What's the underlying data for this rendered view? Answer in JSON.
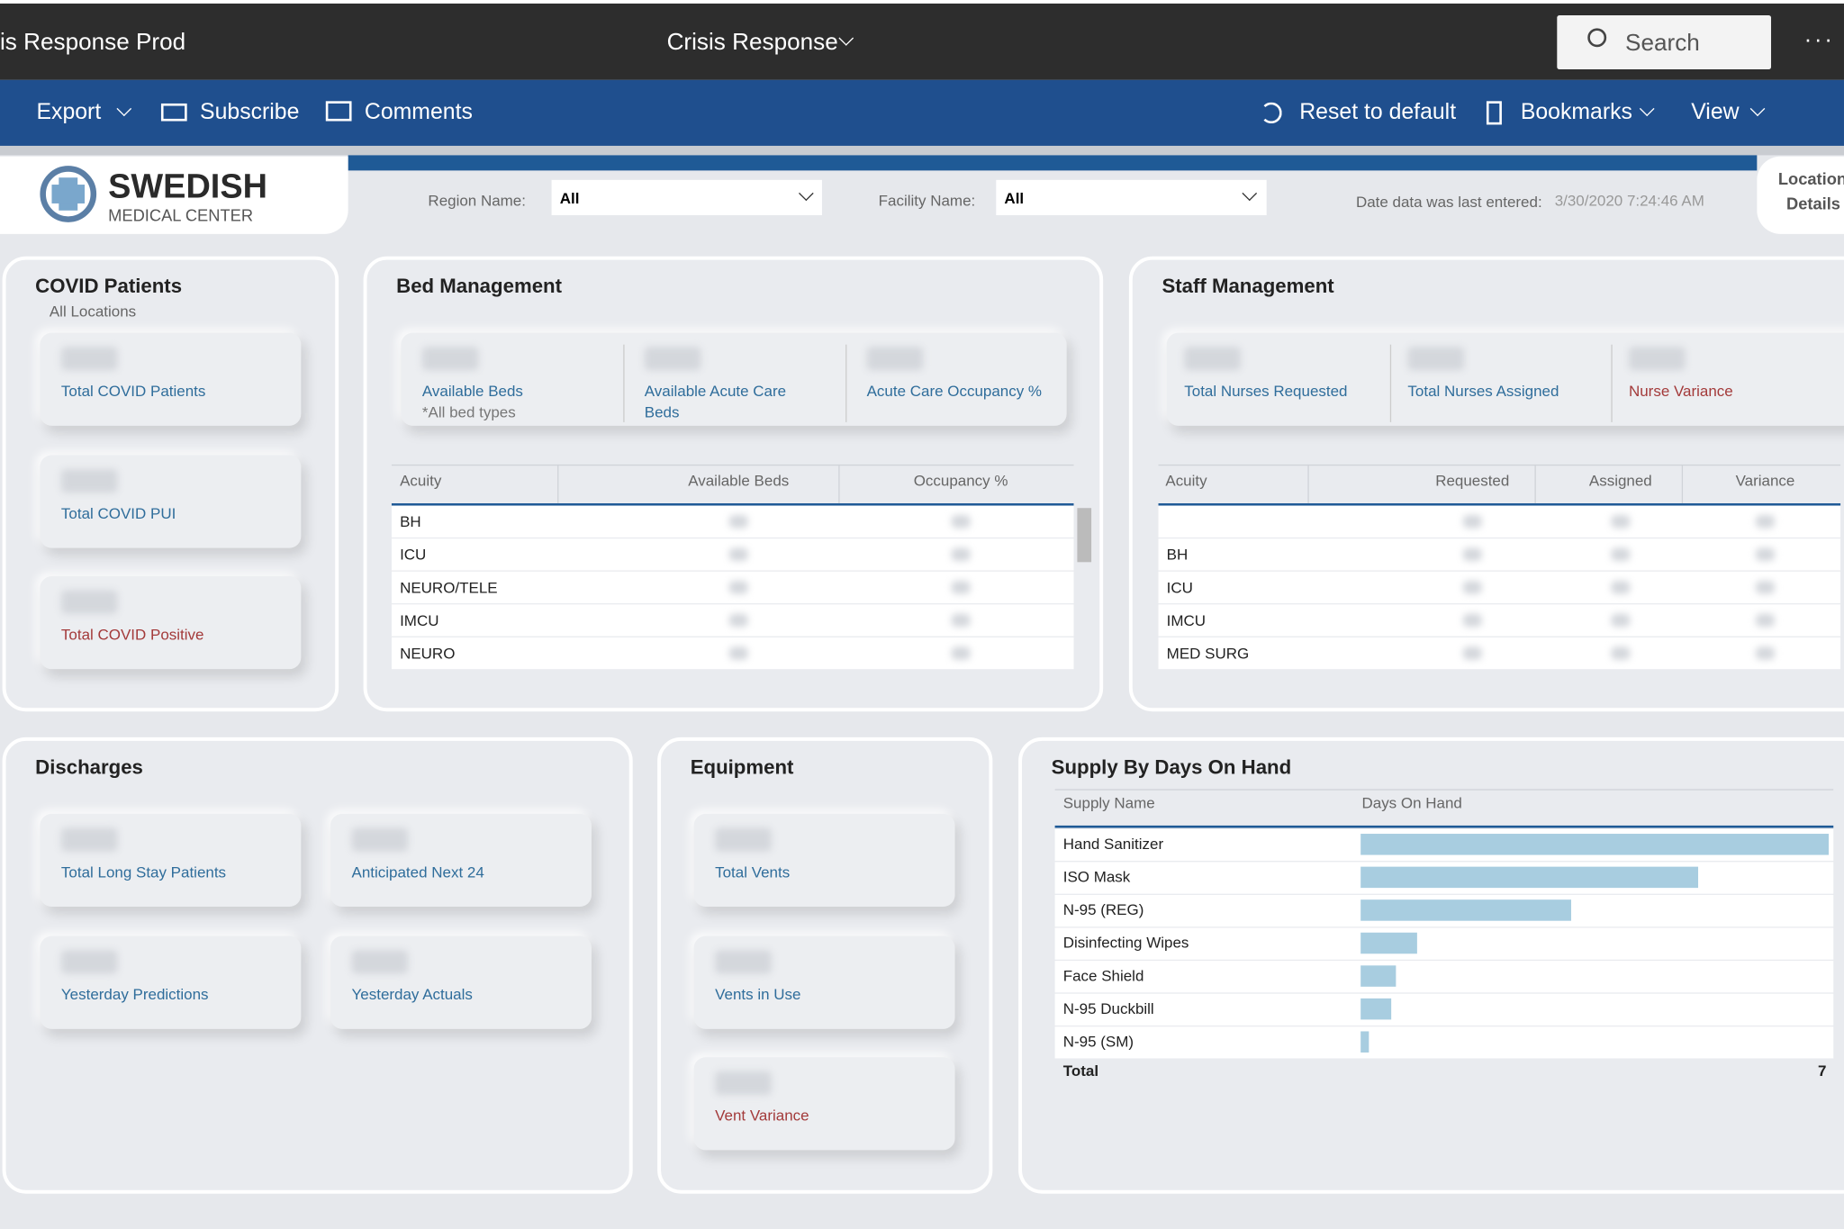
{
  "header": {
    "app_title": "is Response Prod",
    "report_title": "Crisis Response",
    "search": "Search"
  },
  "toolbar": {
    "export": "Export",
    "subscribe": "Subscribe",
    "comments": "Comments",
    "reset": "Reset to default",
    "bookmarks": "Bookmarks",
    "view": "View"
  },
  "logo": {
    "name": "SWEDISH",
    "sub": "MEDICAL CENTER"
  },
  "filters": {
    "region_label": "Region Name:",
    "region_value": "All",
    "facility_label": "Facility Name:",
    "facility_value": "All",
    "date_label": "Date data was last entered:",
    "date_value": "3/30/2020 7:24:46 AM"
  },
  "location_button": [
    "Location",
    "Details"
  ],
  "covid": {
    "title": "COVID Patients",
    "subtitle": "All Locations",
    "cards": [
      "Total COVID Patients",
      "Total COVID PUI",
      "Total COVID Positive"
    ]
  },
  "beds": {
    "title": "Bed Management",
    "cards": [
      "Available Beds",
      "Available Acute Care Beds",
      "Acute Care Occupancy %"
    ],
    "card_note": "*All bed types",
    "table": {
      "columns": [
        "Acuity",
        "Available Beds",
        "Occupancy %"
      ],
      "rows": [
        "BH",
        "ICU",
        "NEURO/TELE",
        "IMCU",
        "NEURO"
      ]
    }
  },
  "staff": {
    "title": "Staff Management",
    "cards": [
      "Total Nurses Requested",
      "Total Nurses Assigned",
      "Nurse Variance"
    ],
    "table": {
      "columns": [
        "Acuity",
        "Requested",
        "Assigned",
        "Variance"
      ],
      "rows": [
        null,
        "BH",
        "ICU",
        "IMCU",
        "MED SURG"
      ]
    }
  },
  "discharges": {
    "title": "Discharges",
    "cards": [
      "Total Long Stay Patients",
      "Anticipated Next 24",
      "Yesterday Predictions",
      "Yesterday Actuals"
    ]
  },
  "equipment": {
    "title": "Equipment",
    "cards": [
      "Total Vents",
      "Vents in Use",
      "Vent Variance"
    ]
  },
  "supply": {
    "title": "Supply By Days On Hand",
    "columns": [
      "Supply Name",
      "Days On Hand"
    ],
    "rows": [
      {
        "name": "Hand Sanitizer",
        "days": 10
      },
      {
        "name": "ISO Mask",
        "days": 7.2
      },
      {
        "name": "N-95 (REG)",
        "days": 4.5
      },
      {
        "name": "Disinfecting Wipes",
        "days": 1.2
      },
      {
        "name": "Face Shield",
        "days": 0.75
      },
      {
        "name": "N-95 Duckbill",
        "days": 0.65
      },
      {
        "name": "N-95 (SM)",
        "days": 0.18
      }
    ],
    "total_label": "Total",
    "total_value": 7,
    "bar_color": "#a8cde0"
  }
}
